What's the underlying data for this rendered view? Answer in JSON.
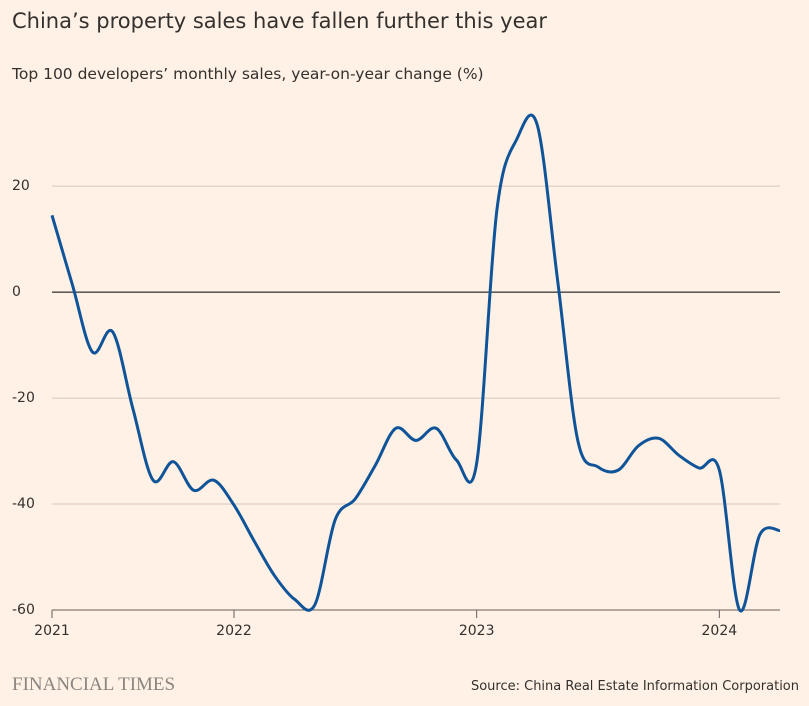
{
  "chart_data": {
    "type": "line",
    "title": "China’s property sales have fallen further this year",
    "subtitle": "Top 100 developers’ monthly sales, year-on-year change (%)",
    "source": "Source: China Real Estate Information Corporation",
    "brand": "FINANCIAL TIMES",
    "x": [
      0,
      1,
      2,
      3,
      4,
      5,
      6,
      7,
      8,
      9,
      10,
      11,
      12,
      13,
      14,
      15,
      16,
      17,
      18,
      19,
      20,
      21,
      22,
      23,
      24,
      25,
      26,
      27,
      28,
      29,
      30,
      31,
      32,
      33,
      34,
      35,
      36
    ],
    "series": [
      {
        "name": "Top 100 developers",
        "color": "#0f5499",
        "values": [
          14.5,
          1.5,
          -11.3,
          -7.5,
          -22,
          -35.5,
          -32,
          -37.4,
          -35.5,
          -40.2,
          -47,
          -53.5,
          -58,
          -59,
          -43,
          -39,
          -32.6,
          -25.7,
          -28,
          -25.7,
          -31.7,
          -32.3,
          15.5,
          29,
          31.5,
          2.3,
          -28,
          -33,
          -33.6,
          -29,
          -27.6,
          -30.8,
          -33.2,
          -33.6,
          -60,
          -45.8,
          -45
        ]
      }
    ],
    "xlim": [
      0,
      36
    ],
    "xticks": [
      {
        "value": 0,
        "label": "2021"
      },
      {
        "value": 9,
        "label": "2022"
      },
      {
        "value": 21,
        "label": "2023"
      },
      {
        "value": 33,
        "label": "2024"
      }
    ],
    "ylim": [
      -60,
      34
    ],
    "yticks": [
      -60,
      -40,
      -20,
      0,
      20
    ],
    "grid": true
  }
}
